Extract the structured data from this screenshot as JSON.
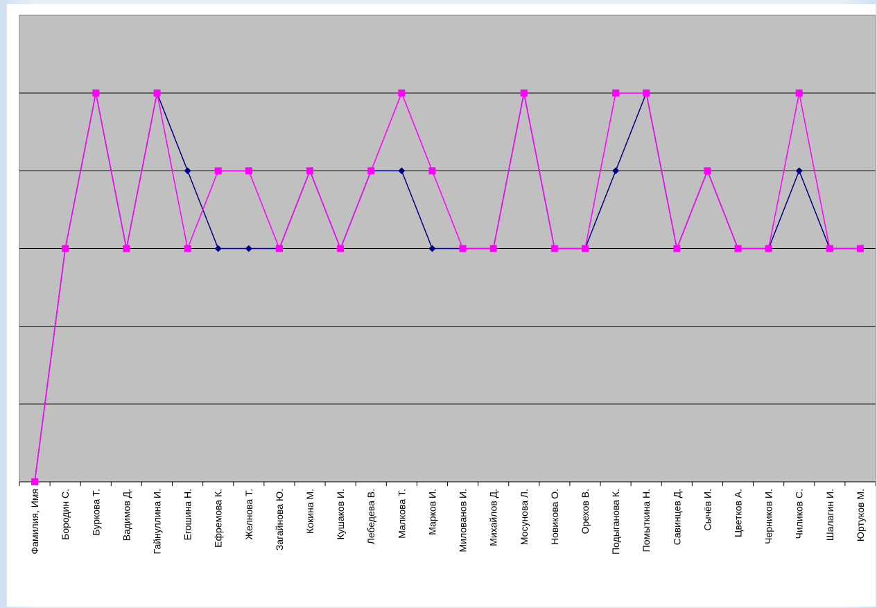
{
  "chart_data": {
    "type": "line",
    "title": "",
    "xlabel": "",
    "ylabel": "",
    "categories": [
      "Фамилия, Имя",
      "Бородин С.",
      "Буркова Т.",
      "Вадимов Д.",
      "Гайнуллина И.",
      "Егошина Н.",
      "Ефремова К.",
      "Желнова Т.",
      "Загайнова Ю.",
      "Кокина М.",
      "Кушаков И.",
      "Лебедева В.",
      "Малкова Т.",
      "Марков И.",
      "Милованов И.",
      "Михайлов Д.",
      "Мосунова Л.",
      "Новикова О.",
      "Орехов В.",
      "Подыганова К.",
      "Помыткина Н.",
      "Савинцев Д.",
      "Сычёв И.",
      "Цветков А.",
      "Черников И.",
      "Чиликов С.",
      "Шалагин И.",
      "Юртуков М."
    ],
    "ylim": [
      0,
      6
    ],
    "grid": true,
    "series": [
      {
        "values": [
          0,
          3,
          5,
          3,
          5,
          4,
          3,
          3,
          3,
          4,
          3,
          4,
          4,
          3,
          3,
          3,
          5,
          3,
          3,
          4,
          5,
          3,
          4,
          3,
          3,
          4,
          3,
          3
        ],
        "color": "#000080",
        "marker": "diamond"
      },
      {
        "values": [
          0,
          3,
          5,
          3,
          5,
          3,
          4,
          4,
          3,
          4,
          3,
          4,
          5,
          4,
          3,
          3,
          5,
          3,
          3,
          5,
          5,
          3,
          4,
          3,
          3,
          5,
          3,
          3
        ],
        "color": "#ff00ff",
        "marker": "square"
      }
    ]
  },
  "colors": {
    "plot_area": "#c0c0c0",
    "gridline": "#000000",
    "chart_background": "#ffffff"
  }
}
